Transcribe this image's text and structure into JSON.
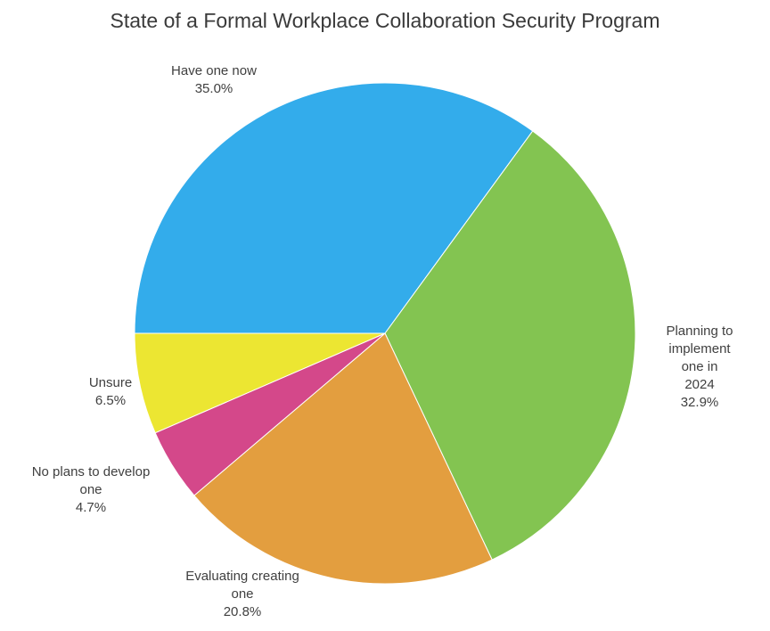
{
  "chart_data": {
    "type": "pie",
    "title": "State of a Formal Workplace Collaboration Security Program",
    "start": "left, clockwise",
    "slices": [
      {
        "label": "Have one now",
        "value": 35.0,
        "display": "35.0%",
        "color": "#33ACEB"
      },
      {
        "label": "Planning to implement one in 2024",
        "value": 32.9,
        "display": "32.9%",
        "color": "#83C451"
      },
      {
        "label": "Evaluating creating one",
        "value": 20.8,
        "display": "20.8%",
        "color": "#E39E3F"
      },
      {
        "label": "No plans to develop one",
        "value": 4.7,
        "display": "4.7%",
        "color": "#D4488A"
      },
      {
        "label": "Unsure",
        "value": 6.5,
        "display": "6.5%",
        "color": "#ECE632"
      }
    ]
  }
}
